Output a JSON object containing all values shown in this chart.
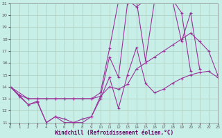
{
  "xlabel": "Windchill (Refroidissement éolien,°C)",
  "bg_color": "#c8eee8",
  "line_color": "#993399",
  "grid_color": "#aaccbb",
  "xlim": [
    0,
    23
  ],
  "ylim": [
    11,
    21
  ],
  "yticks": [
    11,
    12,
    13,
    14,
    15,
    16,
    17,
    18,
    19,
    20,
    21
  ],
  "xticks": [
    0,
    1,
    2,
    3,
    4,
    5,
    6,
    7,
    8,
    9,
    10,
    11,
    12,
    13,
    14,
    15,
    16,
    17,
    18,
    19,
    20,
    21,
    22,
    23
  ],
  "lines": [
    {
      "x": [
        0,
        1,
        2,
        3,
        4,
        5,
        6,
        7,
        8,
        9,
        10,
        11,
        12,
        13,
        14,
        15,
        16,
        17,
        18,
        19,
        20,
        21,
        22,
        23
      ],
      "y": [
        14.0,
        13.3,
        12.5,
        12.7,
        11.0,
        11.5,
        11.3,
        11.0,
        11.3,
        11.5,
        13.0,
        14.8,
        12.2,
        15.0,
        17.3,
        14.3,
        13.5,
        13.8,
        14.3,
        14.7,
        15.0,
        15.2,
        15.3,
        14.8
      ]
    },
    {
      "x": [
        0,
        1,
        2,
        3,
        4,
        5,
        6,
        7,
        8,
        9,
        10,
        11,
        12,
        13,
        14,
        15,
        16,
        17,
        18,
        19,
        20
      ],
      "y": [
        14.0,
        13.3,
        13.0,
        13.0,
        13.0,
        13.0,
        13.0,
        13.0,
        13.0,
        13.0,
        13.5,
        17.2,
        21.2,
        21.3,
        20.7,
        21.3,
        21.3,
        21.3,
        21.3,
        20.2,
        15.3
      ]
    },
    {
      "x": [
        0,
        1,
        2,
        3,
        4,
        5,
        6,
        7,
        8,
        9,
        10,
        11,
        12,
        13,
        14,
        15,
        16,
        17,
        18,
        19,
        20,
        21
      ],
      "y": [
        14.0,
        13.2,
        12.5,
        12.8,
        11.0,
        11.5,
        11.0,
        11.0,
        11.0,
        11.5,
        13.2,
        16.5,
        14.8,
        21.0,
        21.2,
        16.2,
        21.2,
        21.2,
        21.2,
        17.8,
        20.2,
        15.5
      ]
    },
    {
      "x": [
        0,
        2,
        3,
        4,
        5,
        6,
        7,
        8,
        9,
        10,
        11,
        12,
        13,
        14,
        15,
        16,
        17,
        18,
        19,
        20,
        21,
        22,
        23
      ],
      "y": [
        14.0,
        13.0,
        13.0,
        13.0,
        13.0,
        13.0,
        13.0,
        13.0,
        13.0,
        13.2,
        14.0,
        13.8,
        14.2,
        15.5,
        16.0,
        16.5,
        17.0,
        17.5,
        18.0,
        18.5,
        17.8,
        17.0,
        15.0
      ]
    }
  ]
}
